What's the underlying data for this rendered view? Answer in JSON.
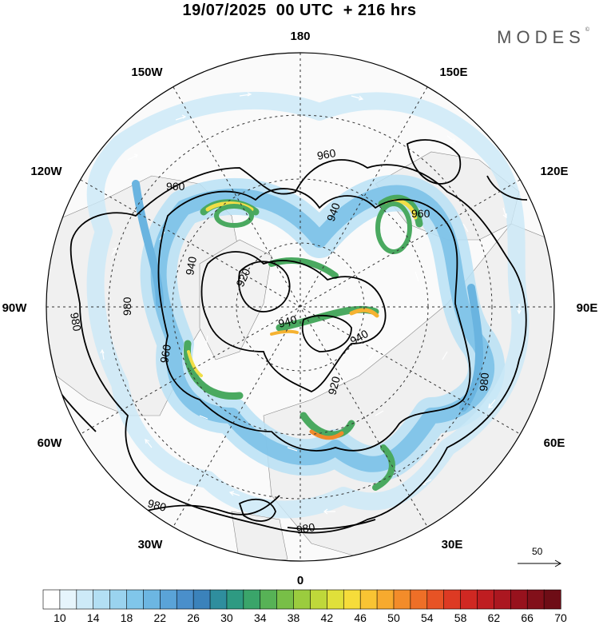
{
  "title": "19/07/2025  00 UTC  + 216 hrs",
  "brand": {
    "name": "MODES",
    "mark": "©"
  },
  "longitude_labels": {
    "n180": "180",
    "e150": "150E",
    "e120": "120E",
    "e90": "90E",
    "e60": "60E",
    "e30": "30E",
    "n0": "0",
    "w30": "30W",
    "w60": "60W",
    "w90": "90W",
    "w120": "120W",
    "w150": "150W"
  },
  "contour_labels": [
    "960",
    "960",
    "960",
    "940",
    "940",
    "920",
    "940",
    "940",
    "920",
    "980",
    "980",
    "960",
    "980",
    "980",
    "980"
  ],
  "vector_reference": {
    "value": "50"
  },
  "colorbar": {
    "tick_labels": [
      "10",
      "14",
      "18",
      "22",
      "26",
      "30",
      "34",
      "38",
      "42",
      "46",
      "50",
      "54",
      "58",
      "62",
      "66",
      "70"
    ],
    "colors": [
      "#ffffff",
      "#e6f5fc",
      "#cdeaf8",
      "#b3dff4",
      "#9ad3ef",
      "#80c6ea",
      "#6cb6e2",
      "#5aa3d8",
      "#4a8fcb",
      "#3b82bb",
      "#2f8e9e",
      "#2e9a82",
      "#3aa56a",
      "#57b256",
      "#78bf47",
      "#9bcc3e",
      "#bfd83a",
      "#e0e03a",
      "#f6dc3a",
      "#f9c433",
      "#f7aa2e",
      "#f38c2a",
      "#ee6f27",
      "#e75325",
      "#dd3a23",
      "#d02822",
      "#bf1d21",
      "#ab1720",
      "#97121d",
      "#82101a",
      "#6e0d16"
    ]
  },
  "colors": {
    "land": "#f1f1f1",
    "jet_light": "#9fd3ef",
    "jet_medium": "#4fa0d4",
    "jet_green": "#49aa5c",
    "jet_yellow": "#f2e04a",
    "jet_orange": "#f28a2a",
    "contour": "#000000",
    "graticule": "#333333"
  }
}
